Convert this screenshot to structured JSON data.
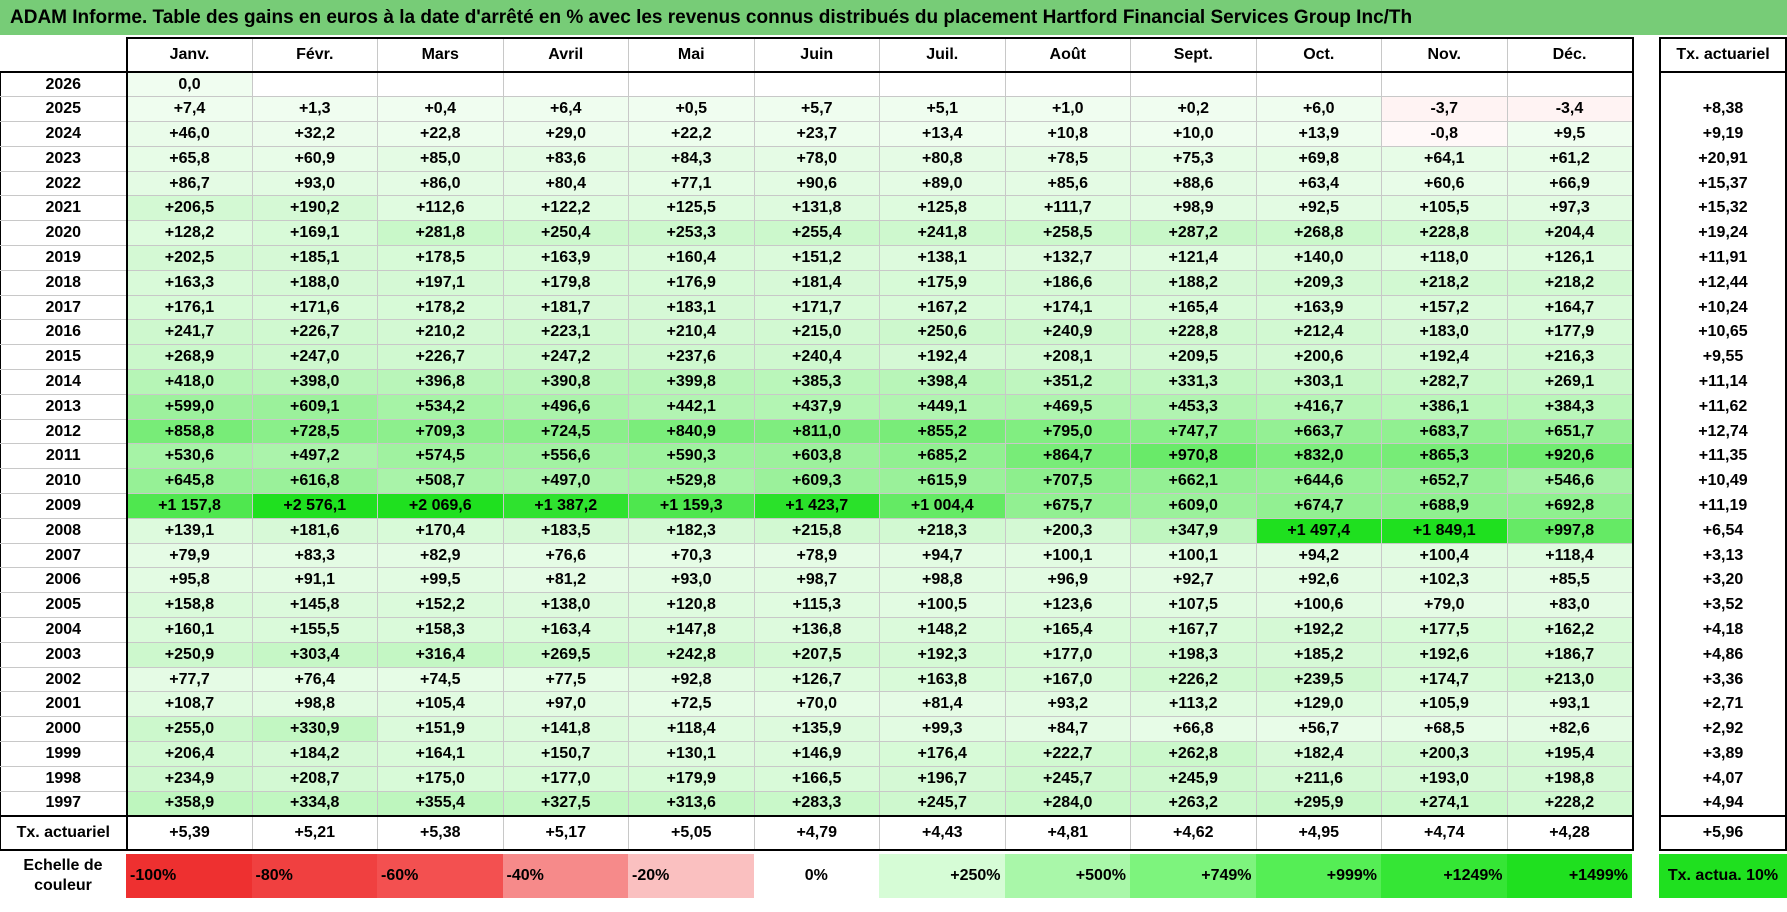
{
  "title": "ADAM Informe. Table des gains en euros à la date d'arrêté en % avec les revenus connus distribués du placement Hartford Financial Services Group Inc/Th",
  "months": [
    "Janv.",
    "Févr.",
    "Mars",
    "Avril",
    "Mai",
    "Juin",
    "Juil.",
    "Août",
    "Sept.",
    "Oct.",
    "Nov.",
    "Déc."
  ],
  "rate_header": "Tx. actuariel",
  "rows": [
    {
      "year": "2026",
      "values": [
        "0,0",
        "",
        "",
        "",
        "",
        "",
        "",
        "",
        "",
        "",
        "",
        ""
      ],
      "rate": ""
    },
    {
      "year": "2025",
      "values": [
        "+7,4",
        "+1,3",
        "+0,4",
        "+6,4",
        "+0,5",
        "+5,7",
        "+5,1",
        "+1,0",
        "+0,2",
        "+6,0",
        "-3,7",
        "-3,4"
      ],
      "rate": "+8,38"
    },
    {
      "year": "2024",
      "values": [
        "+46,0",
        "+32,2",
        "+22,8",
        "+29,0",
        "+22,2",
        "+23,7",
        "+13,4",
        "+10,8",
        "+10,0",
        "+13,9",
        "-0,8",
        "+9,5"
      ],
      "rate": "+9,19"
    },
    {
      "year": "2023",
      "values": [
        "+65,8",
        "+60,9",
        "+85,0",
        "+83,6",
        "+84,3",
        "+78,0",
        "+80,8",
        "+78,5",
        "+75,3",
        "+69,8",
        "+64,1",
        "+61,2"
      ],
      "rate": "+20,91"
    },
    {
      "year": "2022",
      "values": [
        "+86,7",
        "+93,0",
        "+86,0",
        "+80,4",
        "+77,1",
        "+90,6",
        "+89,0",
        "+85,6",
        "+88,6",
        "+63,4",
        "+60,6",
        "+66,9"
      ],
      "rate": "+15,37"
    },
    {
      "year": "2021",
      "values": [
        "+206,5",
        "+190,2",
        "+112,6",
        "+122,2",
        "+125,5",
        "+131,8",
        "+125,8",
        "+111,7",
        "+98,9",
        "+92,5",
        "+105,5",
        "+97,3"
      ],
      "rate": "+15,32"
    },
    {
      "year": "2020",
      "values": [
        "+128,2",
        "+169,1",
        "+281,8",
        "+250,4",
        "+253,3",
        "+255,4",
        "+241,8",
        "+258,5",
        "+287,2",
        "+268,8",
        "+228,8",
        "+204,4"
      ],
      "rate": "+19,24"
    },
    {
      "year": "2019",
      "values": [
        "+202,5",
        "+185,1",
        "+178,5",
        "+163,9",
        "+160,4",
        "+151,2",
        "+138,1",
        "+132,7",
        "+121,4",
        "+140,0",
        "+118,0",
        "+126,1"
      ],
      "rate": "+11,91"
    },
    {
      "year": "2018",
      "values": [
        "+163,3",
        "+188,0",
        "+197,1",
        "+179,8",
        "+176,9",
        "+181,4",
        "+175,9",
        "+186,6",
        "+188,2",
        "+209,3",
        "+218,2",
        "+218,2"
      ],
      "rate": "+12,44"
    },
    {
      "year": "2017",
      "values": [
        "+176,1",
        "+171,6",
        "+178,2",
        "+181,7",
        "+183,1",
        "+171,7",
        "+167,2",
        "+174,1",
        "+165,4",
        "+163,9",
        "+157,2",
        "+164,7"
      ],
      "rate": "+10,24"
    },
    {
      "year": "2016",
      "values": [
        "+241,7",
        "+226,7",
        "+210,2",
        "+223,1",
        "+210,4",
        "+215,0",
        "+250,6",
        "+240,9",
        "+228,8",
        "+212,4",
        "+183,0",
        "+177,9"
      ],
      "rate": "+10,65"
    },
    {
      "year": "2015",
      "values": [
        "+268,9",
        "+247,0",
        "+226,7",
        "+247,2",
        "+237,6",
        "+240,4",
        "+192,4",
        "+208,1",
        "+209,5",
        "+200,6",
        "+192,4",
        "+216,3"
      ],
      "rate": "+9,55"
    },
    {
      "year": "2014",
      "values": [
        "+418,0",
        "+398,0",
        "+396,8",
        "+390,8",
        "+399,8",
        "+385,3",
        "+398,4",
        "+351,2",
        "+331,3",
        "+303,1",
        "+282,7",
        "+269,1"
      ],
      "rate": "+11,14"
    },
    {
      "year": "2013",
      "values": [
        "+599,0",
        "+609,1",
        "+534,2",
        "+496,6",
        "+442,1",
        "+437,9",
        "+449,1",
        "+469,5",
        "+453,3",
        "+416,7",
        "+386,1",
        "+384,3"
      ],
      "rate": "+11,62"
    },
    {
      "year": "2012",
      "values": [
        "+858,8",
        "+728,5",
        "+709,3",
        "+724,5",
        "+840,9",
        "+811,0",
        "+855,2",
        "+795,0",
        "+747,7",
        "+663,7",
        "+683,7",
        "+651,7"
      ],
      "rate": "+12,74"
    },
    {
      "year": "2011",
      "values": [
        "+530,6",
        "+497,2",
        "+574,5",
        "+556,6",
        "+590,3",
        "+603,8",
        "+685,2",
        "+864,7",
        "+970,8",
        "+832,0",
        "+865,3",
        "+920,6"
      ],
      "rate": "+11,35"
    },
    {
      "year": "2010",
      "values": [
        "+645,8",
        "+616,8",
        "+508,7",
        "+497,0",
        "+529,8",
        "+609,3",
        "+615,9",
        "+707,5",
        "+662,1",
        "+644,6",
        "+652,7",
        "+546,6"
      ],
      "rate": "+10,49"
    },
    {
      "year": "2009",
      "values": [
        "+1 157,8",
        "+2 576,1",
        "+2 069,6",
        "+1 387,2",
        "+1 159,3",
        "+1 423,7",
        "+1 004,4",
        "+675,7",
        "+609,0",
        "+674,7",
        "+688,9",
        "+692,8"
      ],
      "rate": "+11,19"
    },
    {
      "year": "2008",
      "values": [
        "+139,1",
        "+181,6",
        "+170,4",
        "+183,5",
        "+182,3",
        "+215,8",
        "+218,3",
        "+200,3",
        "+347,9",
        "+1 497,4",
        "+1 849,1",
        "+997,8"
      ],
      "rate": "+6,54"
    },
    {
      "year": "2007",
      "values": [
        "+79,9",
        "+83,3",
        "+82,9",
        "+76,6",
        "+70,3",
        "+78,9",
        "+94,7",
        "+100,1",
        "+100,1",
        "+94,2",
        "+100,4",
        "+118,4"
      ],
      "rate": "+3,13"
    },
    {
      "year": "2006",
      "values": [
        "+95,8",
        "+91,1",
        "+99,5",
        "+81,2",
        "+93,0",
        "+98,7",
        "+98,8",
        "+96,9",
        "+92,7",
        "+92,6",
        "+102,3",
        "+85,5"
      ],
      "rate": "+3,20"
    },
    {
      "year": "2005",
      "values": [
        "+158,8",
        "+145,8",
        "+152,2",
        "+138,0",
        "+120,8",
        "+115,3",
        "+100,5",
        "+123,6",
        "+107,5",
        "+100,6",
        "+79,0",
        "+83,0"
      ],
      "rate": "+3,52"
    },
    {
      "year": "2004",
      "values": [
        "+160,1",
        "+155,5",
        "+158,3",
        "+163,4",
        "+147,8",
        "+136,8",
        "+148,2",
        "+165,4",
        "+167,7",
        "+192,2",
        "+177,5",
        "+162,2"
      ],
      "rate": "+4,18"
    },
    {
      "year": "2003",
      "values": [
        "+250,9",
        "+303,4",
        "+316,4",
        "+269,5",
        "+242,8",
        "+207,5",
        "+192,3",
        "+177,0",
        "+198,3",
        "+185,2",
        "+192,6",
        "+186,7"
      ],
      "rate": "+4,86"
    },
    {
      "year": "2002",
      "values": [
        "+77,7",
        "+76,4",
        "+74,5",
        "+77,5",
        "+92,8",
        "+126,7",
        "+163,8",
        "+167,0",
        "+226,2",
        "+239,5",
        "+174,7",
        "+213,0"
      ],
      "rate": "+3,36"
    },
    {
      "year": "2001",
      "values": [
        "+108,7",
        "+98,8",
        "+105,4",
        "+97,0",
        "+72,5",
        "+70,0",
        "+81,4",
        "+93,2",
        "+113,2",
        "+129,0",
        "+105,9",
        "+93,1"
      ],
      "rate": "+2,71"
    },
    {
      "year": "2000",
      "values": [
        "+255,0",
        "+330,9",
        "+151,9",
        "+141,8",
        "+118,4",
        "+135,9",
        "+99,3",
        "+84,7",
        "+66,8",
        "+56,7",
        "+68,5",
        "+82,6"
      ],
      "rate": "+2,92"
    },
    {
      "year": "1999",
      "values": [
        "+206,4",
        "+184,2",
        "+164,1",
        "+150,7",
        "+130,1",
        "+146,9",
        "+176,4",
        "+222,7",
        "+262,8",
        "+182,4",
        "+200,3",
        "+195,4"
      ],
      "rate": "+3,89"
    },
    {
      "year": "1998",
      "values": [
        "+234,9",
        "+208,7",
        "+175,0",
        "+177,0",
        "+179,9",
        "+166,5",
        "+196,7",
        "+245,7",
        "+245,9",
        "+211,6",
        "+193,0",
        "+198,8"
      ],
      "rate": "+4,07"
    },
    {
      "year": "1997",
      "values": [
        "+358,9",
        "+334,8",
        "+355,4",
        "+327,5",
        "+313,6",
        "+283,3",
        "+245,7",
        "+284,0",
        "+263,2",
        "+295,9",
        "+274,1",
        "+228,2"
      ],
      "rate": "+4,94"
    }
  ],
  "footer": {
    "label": "Tx. actuariel",
    "values": [
      "+5,39",
      "+5,21",
      "+5,38",
      "+5,17",
      "+5,05",
      "+4,79",
      "+4,43",
      "+4,81",
      "+4,62",
      "+4,95",
      "+4,74",
      "+4,28"
    ],
    "rate": "+5,96"
  },
  "legend": {
    "label": "Echelle de couleur",
    "cells": [
      {
        "text": "-100%",
        "color": "#ee3030",
        "align": "left"
      },
      {
        "text": "-80%",
        "color": "#f04040",
        "align": "left"
      },
      {
        "text": "-60%",
        "color": "#f35050",
        "align": "left"
      },
      {
        "text": "-40%",
        "color": "#f68a8a",
        "align": "left"
      },
      {
        "text": "-20%",
        "color": "#fac0c0",
        "align": "left"
      },
      {
        "text": "0%",
        "color": "#ffffff",
        "align": "center"
      },
      {
        "text": "+250%",
        "color": "#d6fcd6",
        "align": "right"
      },
      {
        "text": "+500%",
        "color": "#a9f7a9",
        "align": "right"
      },
      {
        "text": "+749%",
        "color": "#7df47d",
        "align": "right"
      },
      {
        "text": "+999%",
        "color": "#55ee55",
        "align": "right"
      },
      {
        "text": "+1249%",
        "color": "#35e635",
        "align": "right"
      },
      {
        "text": "+1499%",
        "color": "#1fe01f",
        "align": "right"
      }
    ],
    "rate_text": "Tx. actua. 10%",
    "rate_color": "#1fe01f"
  }
}
